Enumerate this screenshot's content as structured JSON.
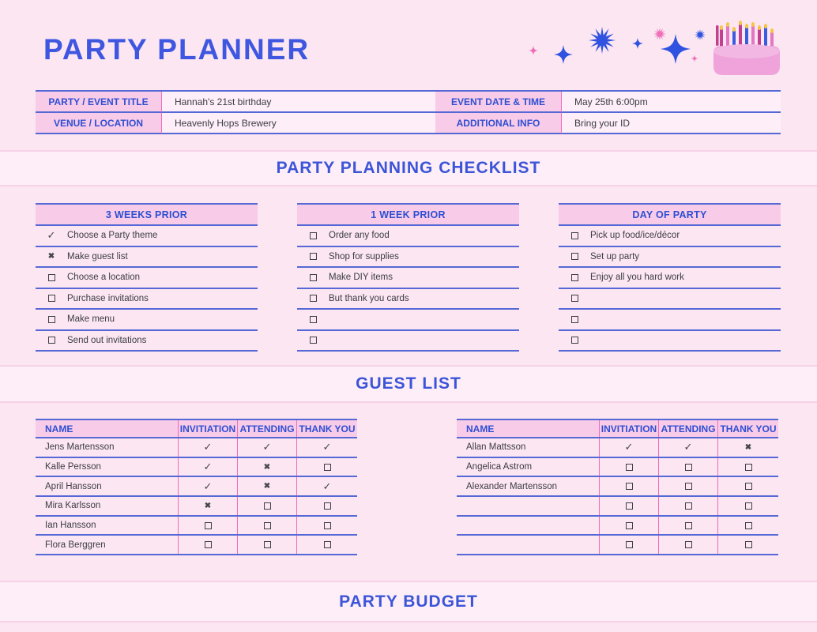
{
  "page": {
    "title": "PARTY PLANNER",
    "colors": {
      "background": "#fbe6f2",
      "band_background": "#fdeef7",
      "band_line": "#f6d1e8",
      "header_cell_pink": "#f8cce8",
      "blue_text": "#2e4ed3",
      "blue_title": "#3f57e0",
      "blue_border": "#5668d5",
      "magenta_line": "#f06cbb",
      "body_text": "#3c3c44",
      "sparkle_blue": "#2f52e0",
      "sparkle_pink": "#ef6eb8",
      "cake_body": "#efa3da"
    }
  },
  "event_info": {
    "rows": [
      {
        "label1": "PARTY / EVENT TITLE",
        "value1": "Hannah's 21st birthday",
        "label2": "EVENT DATE & TIME",
        "value2": "May 25th 6:00pm"
      },
      {
        "label1": "VENUE / LOCATION",
        "value1": "Heavenly Hops Brewery",
        "label2": "ADDITIONAL INFO",
        "value2": "Bring your ID"
      }
    ]
  },
  "checklist": {
    "title": "PARTY PLANNING CHECKLIST",
    "columns": [
      {
        "header": "3 WEEKS PRIOR",
        "items": [
          {
            "state": "checked",
            "text": "Choose a Party theme"
          },
          {
            "state": "crossed",
            "text": "Make guest list"
          },
          {
            "state": "unchecked",
            "text": "Choose a location"
          },
          {
            "state": "unchecked",
            "text": "Purchase invitations"
          },
          {
            "state": "unchecked",
            "text": "Make menu"
          },
          {
            "state": "unchecked",
            "text": "Send out invitations"
          }
        ]
      },
      {
        "header": "1 WEEK PRIOR",
        "items": [
          {
            "state": "unchecked",
            "text": "Order any food"
          },
          {
            "state": "unchecked",
            "text": "Shop for supplies"
          },
          {
            "state": "unchecked",
            "text": "Make DIY items"
          },
          {
            "state": "unchecked",
            "text": "But thank you cards"
          },
          {
            "state": "unchecked",
            "text": ""
          },
          {
            "state": "unchecked",
            "text": ""
          }
        ]
      },
      {
        "header": "DAY OF PARTY",
        "items": [
          {
            "state": "unchecked",
            "text": "Pick up food/ice/décor"
          },
          {
            "state": "unchecked",
            "text": "Set up party"
          },
          {
            "state": "unchecked",
            "text": "Enjoy all you hard work"
          },
          {
            "state": "unchecked",
            "text": ""
          },
          {
            "state": "unchecked",
            "text": ""
          },
          {
            "state": "unchecked",
            "text": ""
          }
        ]
      }
    ]
  },
  "guest_list": {
    "title": "GUEST LIST",
    "headers": [
      "NAME",
      "INVITIATION",
      "ATTENDING",
      "THANK YOU"
    ],
    "tables": [
      {
        "rows": [
          {
            "name": "Jens Martensson",
            "marks": [
              "checked",
              "checked",
              "checked"
            ]
          },
          {
            "name": "Kalle Persson",
            "marks": [
              "checked",
              "crossed",
              "unchecked"
            ]
          },
          {
            "name": "April Hansson",
            "marks": [
              "checked",
              "crossed",
              "checked"
            ]
          },
          {
            "name": "Mira Karlsson",
            "marks": [
              "crossed",
              "unchecked",
              "unchecked"
            ]
          },
          {
            "name": "Ian Hansson",
            "marks": [
              "unchecked",
              "unchecked",
              "unchecked"
            ]
          },
          {
            "name": "Flora Berggren",
            "marks": [
              "unchecked",
              "unchecked",
              "unchecked"
            ]
          }
        ]
      },
      {
        "rows": [
          {
            "name": "Allan Mattsson",
            "marks": [
              "checked",
              "checked",
              "crossed"
            ]
          },
          {
            "name": "Angelica Astrom",
            "marks": [
              "unchecked",
              "unchecked",
              "unchecked"
            ]
          },
          {
            "name": "Alexander Martensson",
            "marks": [
              "unchecked",
              "unchecked",
              "unchecked"
            ]
          },
          {
            "name": "",
            "marks": [
              "unchecked",
              "unchecked",
              "unchecked"
            ]
          },
          {
            "name": "",
            "marks": [
              "unchecked",
              "unchecked",
              "unchecked"
            ]
          },
          {
            "name": "",
            "marks": [
              "unchecked",
              "unchecked",
              "unchecked"
            ]
          }
        ]
      }
    ]
  },
  "budget": {
    "title": "PARTY BUDGET"
  }
}
